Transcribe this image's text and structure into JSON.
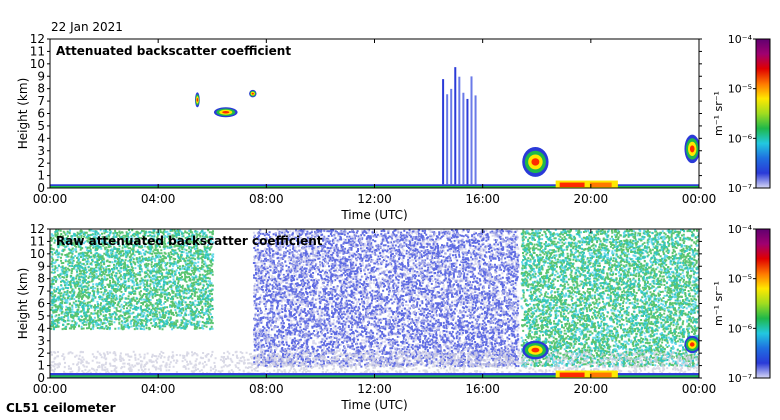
{
  "date": "22 Jan 2021",
  "instrument": "CL51 ceilometer",
  "colors": {
    "scale": [
      "#d8d8f4",
      "#2a3ad8",
      "#1f6fe0",
      "#22c8e0",
      "#1fb84a",
      "#a0dc20",
      "#ffe800",
      "#ff7800",
      "#e00000",
      "#a00070",
      "#600070"
    ],
    "noise_blue": "#2a3ad8",
    "noise_green": "#22b040",
    "ground_red": "#ff2a00"
  },
  "chart_data": [
    {
      "type": "heatmap",
      "title": "Attenuated backscatter coefficient",
      "xlabel": "Time (UTC)",
      "ylabel": "Height (km)",
      "xlim": [
        0,
        24
      ],
      "ylim": [
        0,
        12
      ],
      "x_ticks": [
        "00:00",
        "04:00",
        "08:00",
        "12:00",
        "16:00",
        "20:00",
        "00:00"
      ],
      "y_ticks": [
        "0",
        "1",
        "2",
        "3",
        "4",
        "5",
        "6",
        "7",
        "8",
        "9",
        "10",
        "11",
        "12"
      ],
      "colorbar": {
        "label": "m⁻¹ sr⁻¹",
        "ticks": [
          "10⁻⁴",
          "10⁻⁵",
          "10⁻⁶",
          "10⁻⁷"
        ],
        "scale": "log",
        "range": [
          1e-07,
          0.0001
        ]
      },
      "features": [
        {
          "name": "surface layer",
          "t_start": 0,
          "t_end": 24,
          "h_min": 0,
          "h_max": 0.3
        },
        {
          "name": "aerosol plume",
          "t_start": 5.4,
          "t_end": 5.5,
          "h_min": 6.5,
          "h_max": 7.7
        },
        {
          "name": "aerosol plume",
          "t_start": 6.1,
          "t_end": 6.9,
          "h_min": 5.7,
          "h_max": 6.5
        },
        {
          "name": "aerosol plume",
          "t_start": 7.4,
          "t_end": 7.6,
          "h_min": 7.3,
          "h_max": 7.9
        },
        {
          "name": "precipitation streaks",
          "t_start": 14.5,
          "t_end": 15.7,
          "h_min": 0.3,
          "h_max": 10.0
        },
        {
          "name": "low cloud",
          "t_start": 17.5,
          "t_end": 18.4,
          "h_min": 0.9,
          "h_max": 3.3
        },
        {
          "name": "low cloud",
          "t_start": 23.5,
          "t_end": 24.0,
          "h_min": 2.0,
          "h_max": 4.3
        },
        {
          "name": "fog / boundary layer",
          "t_start": 18.7,
          "t_end": 21.0,
          "h_min": 0,
          "h_max": 0.6
        }
      ]
    },
    {
      "type": "heatmap",
      "title": "Raw attenuated backscatter coefficient",
      "xlabel": "Time (UTC)",
      "ylabel": "Height (km)",
      "xlim": [
        0,
        24
      ],
      "ylim": [
        0,
        12
      ],
      "x_ticks": [
        "00:00",
        "04:00",
        "08:00",
        "12:00",
        "16:00",
        "20:00",
        "00:00"
      ],
      "y_ticks": [
        "0",
        "1",
        "2",
        "3",
        "4",
        "5",
        "6",
        "7",
        "8",
        "9",
        "10",
        "11",
        "12"
      ],
      "colorbar": {
        "label": "m⁻¹ sr⁻¹",
        "ticks": [
          "10⁻⁴",
          "10⁻⁵",
          "10⁻⁶",
          "10⁻⁷"
        ],
        "scale": "log",
        "range": [
          1e-07,
          0.0001
        ]
      },
      "features": [
        {
          "name": "noisy background (green)",
          "t_start": 0,
          "t_end": 6.0,
          "h_min": 4.0,
          "h_max": 12.0
        },
        {
          "name": "noisy background (blue)",
          "t_start": 7.5,
          "t_end": 17.3,
          "h_min": 1.0,
          "h_max": 12.0
        },
        {
          "name": "noisy background (green)",
          "t_start": 17.4,
          "t_end": 24.0,
          "h_min": 1.0,
          "h_max": 12.0
        },
        {
          "name": "surface layer",
          "t_start": 0,
          "t_end": 24,
          "h_min": 0,
          "h_max": 0.4
        },
        {
          "name": "low cloud",
          "t_start": 17.5,
          "t_end": 18.4,
          "h_min": 1.5,
          "h_max": 3.0
        },
        {
          "name": "low cloud",
          "t_start": 23.5,
          "t_end": 24.0,
          "h_min": 2.0,
          "h_max": 3.4
        },
        {
          "name": "fog / boundary layer",
          "t_start": 18.7,
          "t_end": 21.0,
          "h_min": 0,
          "h_max": 0.6
        }
      ]
    }
  ]
}
